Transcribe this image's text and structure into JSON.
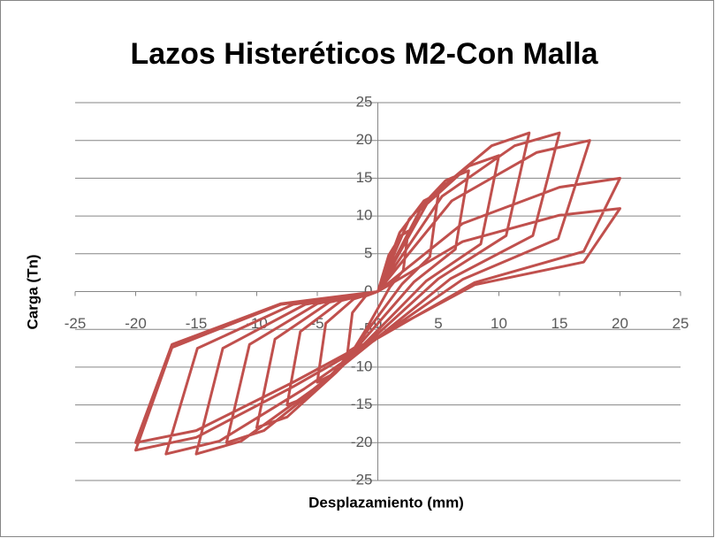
{
  "chart_data": {
    "type": "line",
    "title": "Lazos Histeréticos M2-Con Malla",
    "xlabel": "Desplazamiento (mm)",
    "ylabel": "Carga (Tn)",
    "color": "#c0504d",
    "grid": true,
    "xlim": [
      -25,
      25
    ],
    "xticks": [
      -25,
      -20,
      -15,
      -10,
      -5,
      0,
      5,
      10,
      15,
      20,
      25
    ],
    "ylim": [
      -25,
      25
    ],
    "yticks": [
      -25,
      -20,
      -15,
      -10,
      -5,
      0,
      5,
      10,
      15,
      20,
      25
    ],
    "x": [
      0,
      0.9,
      1.9,
      2.5,
      2.1,
      1,
      -0.9,
      -1.9,
      -2.5,
      -2.1,
      -1,
      0,
      1.8,
      3.8,
      5,
      4.3,
      2,
      -1.8,
      -3.8,
      -5,
      -4.3,
      -2,
      0,
      2.6,
      5.6,
      7.5,
      6.4,
      3,
      -2.6,
      -5.6,
      -7.5,
      -6.4,
      -3,
      0,
      3.5,
      7.5,
      10,
      8.5,
      4,
      -3.5,
      -7.5,
      -10,
      -8.5,
      -4,
      0,
      4.4,
      9.4,
      12.5,
      10.6,
      5,
      -4.4,
      -9.4,
      -12.5,
      -10.6,
      -5,
      0,
      5.3,
      11.3,
      15,
      12.8,
      6,
      -5.3,
      -11.3,
      -15,
      -12.8,
      -6,
      0,
      6.1,
      13.1,
      17.5,
      14.9,
      7,
      -6.1,
      -13.1,
      -17.5,
      -14.9,
      -7,
      0,
      7,
      15,
      20,
      17,
      8,
      -7,
      -15,
      -20,
      -17,
      -8,
      0,
      7,
      15,
      20,
      17,
      8,
      -7,
      -15,
      -20,
      -17,
      -8,
      0
    ],
    "values": [
      0,
      4.8,
      7.4,
      8,
      2.8,
      0.6,
      -4.8,
      -7.4,
      -8,
      -2.8,
      -0.6,
      0,
      7.8,
      12,
      13,
      4.6,
      1,
      -7.2,
      -11,
      -12,
      -4.2,
      -1,
      0,
      9.6,
      14.7,
      16,
      5.6,
      1.3,
      -9,
      -13.8,
      -15,
      -5.3,
      -1.2,
      0,
      10.8,
      16.6,
      18,
      6.3,
      1.4,
      -10.8,
      -16.6,
      -18,
      -6.3,
      -1.4,
      0,
      12.6,
      19.3,
      21,
      7.4,
      1.7,
      -12,
      -18.4,
      -20,
      -7,
      -1.6,
      0,
      12.6,
      19.3,
      21,
      7.4,
      1.7,
      -12.9,
      -19.8,
      -21.5,
      -7.5,
      -1.7,
      0,
      12,
      18.4,
      20,
      7,
      1.6,
      -12.9,
      -19.8,
      -21.5,
      -7.5,
      -1.7,
      0,
      9,
      13.8,
      15,
      5.3,
      1.2,
      -12.6,
      -19.3,
      -21,
      -7.4,
      -1.7,
      0,
      6.6,
      10.1,
      11,
      3.9,
      0.9,
      -12,
      -18.4,
      -20,
      -7,
      -1.6,
      0
    ]
  }
}
